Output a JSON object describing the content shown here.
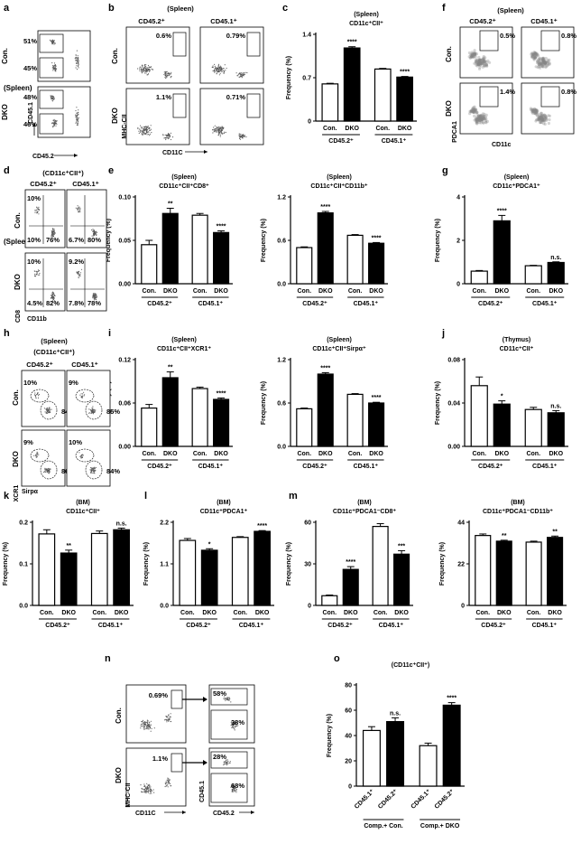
{
  "figure": {
    "panel_letters": [
      "a",
      "b",
      "c",
      "d",
      "e",
      "f",
      "g",
      "h",
      "i",
      "j",
      "k",
      "l",
      "m",
      "n",
      "o"
    ],
    "colors": {
      "con_fill": "#ffffff",
      "dko_fill": "#000000",
      "axis": "#000000",
      "dot": "#555555"
    }
  },
  "flow_panels": [
    {
      "id": "a",
      "left_label": "(Spleen)",
      "row_labels": [
        "Con.",
        "DKO"
      ],
      "xlabel": "CD45.2",
      "ylabel": "CD45.1",
      "gates": [
        [
          "51%",
          "45%"
        ],
        [
          "48%",
          "46%"
        ]
      ]
    },
    {
      "id": "b",
      "title": "(Spleen)",
      "col_labels": [
        "CD45.2⁺",
        "CD45.1⁺"
      ],
      "row_labels": [
        "Con.",
        "DKO"
      ],
      "xlabel": "CD11C",
      "ylabel": "MHC-CII",
      "gates": [
        [
          "0.6%",
          "0.79%"
        ],
        [
          "1.1%",
          "0.71%"
        ]
      ]
    },
    {
      "id": "f",
      "title": "(Spleen)",
      "col_labels": [
        "CD45.2⁺",
        "CD45.1⁺"
      ],
      "row_labels": [
        "Con.",
        "DKO"
      ],
      "xlabel": "CD11c",
      "ylabel": "PDCA1",
      "gates": [
        [
          "0.5%",
          "0.8%"
        ],
        [
          "1.4%",
          "0.8%"
        ]
      ]
    },
    {
      "id": "d",
      "title": "(CD11c⁺CII⁺)",
      "left_label": "(Spleen)",
      "col_labels": [
        "CD45.2⁺",
        "CD45.1⁺"
      ],
      "row_labels": [
        "Con.",
        "DKO"
      ],
      "xlabel": "CD11b",
      "ylabel": "CD8",
      "gates": [
        [
          [
            "10%",
            "10%",
            "76%"
          ],
          [
            "6.7%",
            "80%"
          ]
        ],
        [
          [
            "10%",
            "4.5%",
            "82%"
          ],
          [
            "9.2%",
            "7.8%",
            "78%"
          ]
        ]
      ]
    },
    {
      "id": "h",
      "title": "(Spleen)",
      "subtitle": "(CD11c⁺CII⁺)",
      "col_labels": [
        "CD45.2⁺",
        "CD45.1⁺"
      ],
      "row_labels": [
        "Con.",
        "DKO"
      ],
      "xlabel": "Sirpα",
      "ylabel": "XCR1",
      "gates": [
        [
          "10%",
          "84%",
          "9%",
          "85%"
        ],
        [
          "9%",
          "86%",
          "10%",
          "84%"
        ]
      ]
    },
    {
      "id": "n",
      "row_labels": [
        "Con.",
        "DKO"
      ],
      "xlabel": "CD11C",
      "ylabel": "MHC-CII",
      "xlabel2": "CD45.2",
      "ylabel2": "CD45.1",
      "gates": [
        [
          "0.69%",
          "58%",
          "38%"
        ],
        [
          "1.1%",
          "28%",
          "68%"
        ]
      ]
    }
  ],
  "chart_data": [
    {
      "id": "c",
      "type": "bar",
      "title": "(Spleen)",
      "subtitle": "CD11c⁺CII⁺",
      "ylabel": "Frequency (%)",
      "ylim": [
        0,
        1.4
      ],
      "yticks": [
        "0",
        "0.7",
        "1.4"
      ],
      "categories": [
        "Con.",
        "DKO",
        "Con.",
        "DKO"
      ],
      "groups": [
        "CD45.2⁺",
        "CD45.1⁺"
      ],
      "values": [
        0.6,
        1.18,
        0.84,
        0.71
      ],
      "errors": [
        0.01,
        0.02,
        0.01,
        0.01
      ],
      "sig": [
        "",
        "****",
        "",
        "****"
      ]
    },
    {
      "id": "e1",
      "type": "bar",
      "title": "(Spleen)",
      "subtitle": "CD11c⁺CII⁺CD8⁺",
      "ylabel": "Frequency (%)",
      "ylim": [
        0,
        0.1
      ],
      "yticks": [
        "0.00",
        "0.05",
        "0.10"
      ],
      "categories": [
        "Con.",
        "DKO",
        "Con.",
        "DKO"
      ],
      "groups": [
        "CD45.2⁺",
        "CD45.1⁺"
      ],
      "values": [
        0.045,
        0.081,
        0.079,
        0.059
      ],
      "errors": [
        0.005,
        0.006,
        0.002,
        0.002
      ],
      "sig": [
        "",
        "**",
        "",
        "****"
      ]
    },
    {
      "id": "e2",
      "type": "bar",
      "title": "(Spleen)",
      "subtitle": "CD11c⁺CII⁺CD11b⁺",
      "ylabel": "Frequency (%)",
      "ylim": [
        0,
        1.2
      ],
      "yticks": [
        "0.0",
        "0.6",
        "1.2"
      ],
      "categories": [
        "Con.",
        "DKO",
        "Con.",
        "DKO"
      ],
      "groups": [
        "CD45.2⁺",
        "CD45.1⁺"
      ],
      "values": [
        0.5,
        0.98,
        0.67,
        0.56
      ],
      "errors": [
        0.01,
        0.02,
        0.01,
        0.01
      ],
      "sig": [
        "",
        "****",
        "",
        "****"
      ]
    },
    {
      "id": "g",
      "type": "bar",
      "title": "(Spleen)",
      "subtitle": "CD11c⁺PDCA1⁺",
      "ylabel": "Frequency (%)",
      "ylim": [
        0,
        4
      ],
      "yticks": [
        "0",
        "2",
        "4"
      ],
      "categories": [
        "Con.",
        "DKO",
        "Con.",
        "DKO"
      ],
      "groups": [
        "CD45.2⁺",
        "CD45.1⁺"
      ],
      "values": [
        0.58,
        2.9,
        0.83,
        0.98
      ],
      "errors": [
        0.03,
        0.25,
        0.02,
        0.03
      ],
      "sig": [
        "",
        "****",
        "",
        "n.s."
      ]
    },
    {
      "id": "i1",
      "type": "bar",
      "title": "(Spleen)",
      "subtitle": "CD11c⁺CII⁺XCR1⁺",
      "ylabel": "Frequency (%)",
      "ylim": [
        0,
        0.12
      ],
      "yticks": [
        "0.00",
        "0.06",
        "0.12"
      ],
      "categories": [
        "Con.",
        "DKO",
        "Con.",
        "DKO"
      ],
      "groups": [
        "CD45.2⁺",
        "CD45.1⁺"
      ],
      "values": [
        0.053,
        0.095,
        0.08,
        0.065
      ],
      "errors": [
        0.005,
        0.008,
        0.002,
        0.002
      ],
      "sig": [
        "",
        "**",
        "",
        "****"
      ]
    },
    {
      "id": "i2",
      "type": "bar",
      "title": "(Spleen)",
      "subtitle": "CD11c⁺CII⁺Sirpα⁺",
      "ylabel": "Frequency (%)",
      "ylim": [
        0,
        1.2
      ],
      "yticks": [
        "0.0",
        "0.6",
        "1.2"
      ],
      "categories": [
        "Con.",
        "DKO",
        "Con.",
        "DKO"
      ],
      "groups": [
        "CD45.2⁺",
        "CD45.1⁺"
      ],
      "values": [
        0.52,
        1.0,
        0.72,
        0.6
      ],
      "errors": [
        0.01,
        0.02,
        0.01,
        0.01
      ],
      "sig": [
        "",
        "****",
        "",
        "****"
      ]
    },
    {
      "id": "j",
      "type": "bar",
      "title": "(Thymus)",
      "subtitle": "CD11c⁺CII⁺",
      "ylabel": "Frequency (%)",
      "ylim": [
        0,
        0.08
      ],
      "yticks": [
        "0.00",
        "0.04",
        "0.08"
      ],
      "categories": [
        "Con.",
        "DKO",
        "Con.",
        "DKO"
      ],
      "groups": [
        "CD45.2⁺",
        "CD45.1⁺"
      ],
      "values": [
        0.056,
        0.039,
        0.034,
        0.031
      ],
      "errors": [
        0.008,
        0.003,
        0.002,
        0.002
      ],
      "sig": [
        "",
        "*",
        "",
        "n.s."
      ]
    },
    {
      "id": "k",
      "type": "bar",
      "title": "(BM)",
      "subtitle": "CD11c⁺CII⁺",
      "ylabel": "Frequency (%)",
      "ylim": [
        0,
        0.2
      ],
      "yticks": [
        "0.0",
        "0.1",
        "0.2"
      ],
      "categories": [
        "Con.",
        "DKO",
        "Con.",
        "DKO"
      ],
      "groups": [
        "CD45.2⁺",
        "CD45.1⁺"
      ],
      "values": [
        0.172,
        0.126,
        0.173,
        0.182
      ],
      "errors": [
        0.01,
        0.007,
        0.006,
        0.004
      ],
      "sig": [
        "",
        "**",
        "",
        "n.s."
      ]
    },
    {
      "id": "l",
      "type": "bar",
      "title": "(BM)",
      "subtitle": "CD11c⁺PDCA1⁺",
      "ylabel": "Frequency (%)",
      "ylim": [
        0,
        2.2
      ],
      "yticks": [
        "0.0",
        "1.1",
        "2.2"
      ],
      "categories": [
        "Con.",
        "DKO",
        "Con.",
        "DKO"
      ],
      "groups": [
        "CD45.2⁺",
        "CD45.1⁺"
      ],
      "values": [
        1.72,
        1.46,
        1.8,
        1.96
      ],
      "errors": [
        0.05,
        0.04,
        0.02,
        0.02
      ],
      "sig": [
        "",
        "*",
        "",
        "****"
      ]
    },
    {
      "id": "m1",
      "type": "bar",
      "title": "(BM)",
      "subtitle": "CD11c⁺PDCA1⁻CD8⁺",
      "ylabel": "Frequency (%)",
      "ylim": [
        0,
        60
      ],
      "yticks": [
        "0",
        "30",
        "60"
      ],
      "categories": [
        "Con.",
        "DKO",
        "Con.",
        "DKO"
      ],
      "groups": [
        "CD45.2⁺",
        "CD45.1⁺"
      ],
      "values": [
        7,
        26,
        57,
        37
      ],
      "errors": [
        0.5,
        2,
        2,
        2.5
      ],
      "sig": [
        "",
        "****",
        "",
        "***"
      ]
    },
    {
      "id": "m2",
      "type": "bar",
      "title": "(BM)",
      "subtitle": "CD11c⁺PDCA1⁻CD11b⁺",
      "ylabel": "Frequency (%)",
      "ylim": [
        0,
        44
      ],
      "yticks": [
        "0",
        "22",
        "44"
      ],
      "categories": [
        "Con.",
        "DKO",
        "Con.",
        "DKO"
      ],
      "groups": [
        "CD45.2⁺",
        "CD45.1⁺"
      ],
      "values": [
        37,
        34,
        33.5,
        36
      ],
      "errors": [
        0.8,
        0.5,
        0.5,
        0.7
      ],
      "sig": [
        "",
        "**",
        "",
        "**"
      ]
    },
    {
      "id": "o",
      "type": "bar",
      "title": "(CD11c⁺CII⁺)",
      "ylabel": "Frequency (%)",
      "ylim": [
        0,
        80
      ],
      "yticks": [
        "0",
        "20",
        "40",
        "60",
        "80"
      ],
      "categories": [
        "CD45.1⁺",
        "CD45.2⁺",
        "CD45.1⁺",
        "CD45.2⁺"
      ],
      "groups": [
        "Comp.+ Con.",
        "Comp.+ DKO"
      ],
      "values": [
        44,
        51,
        32,
        64
      ],
      "errors": [
        3,
        3,
        2,
        2
      ],
      "sig": [
        "",
        "n.s.",
        "",
        "****"
      ]
    }
  ]
}
